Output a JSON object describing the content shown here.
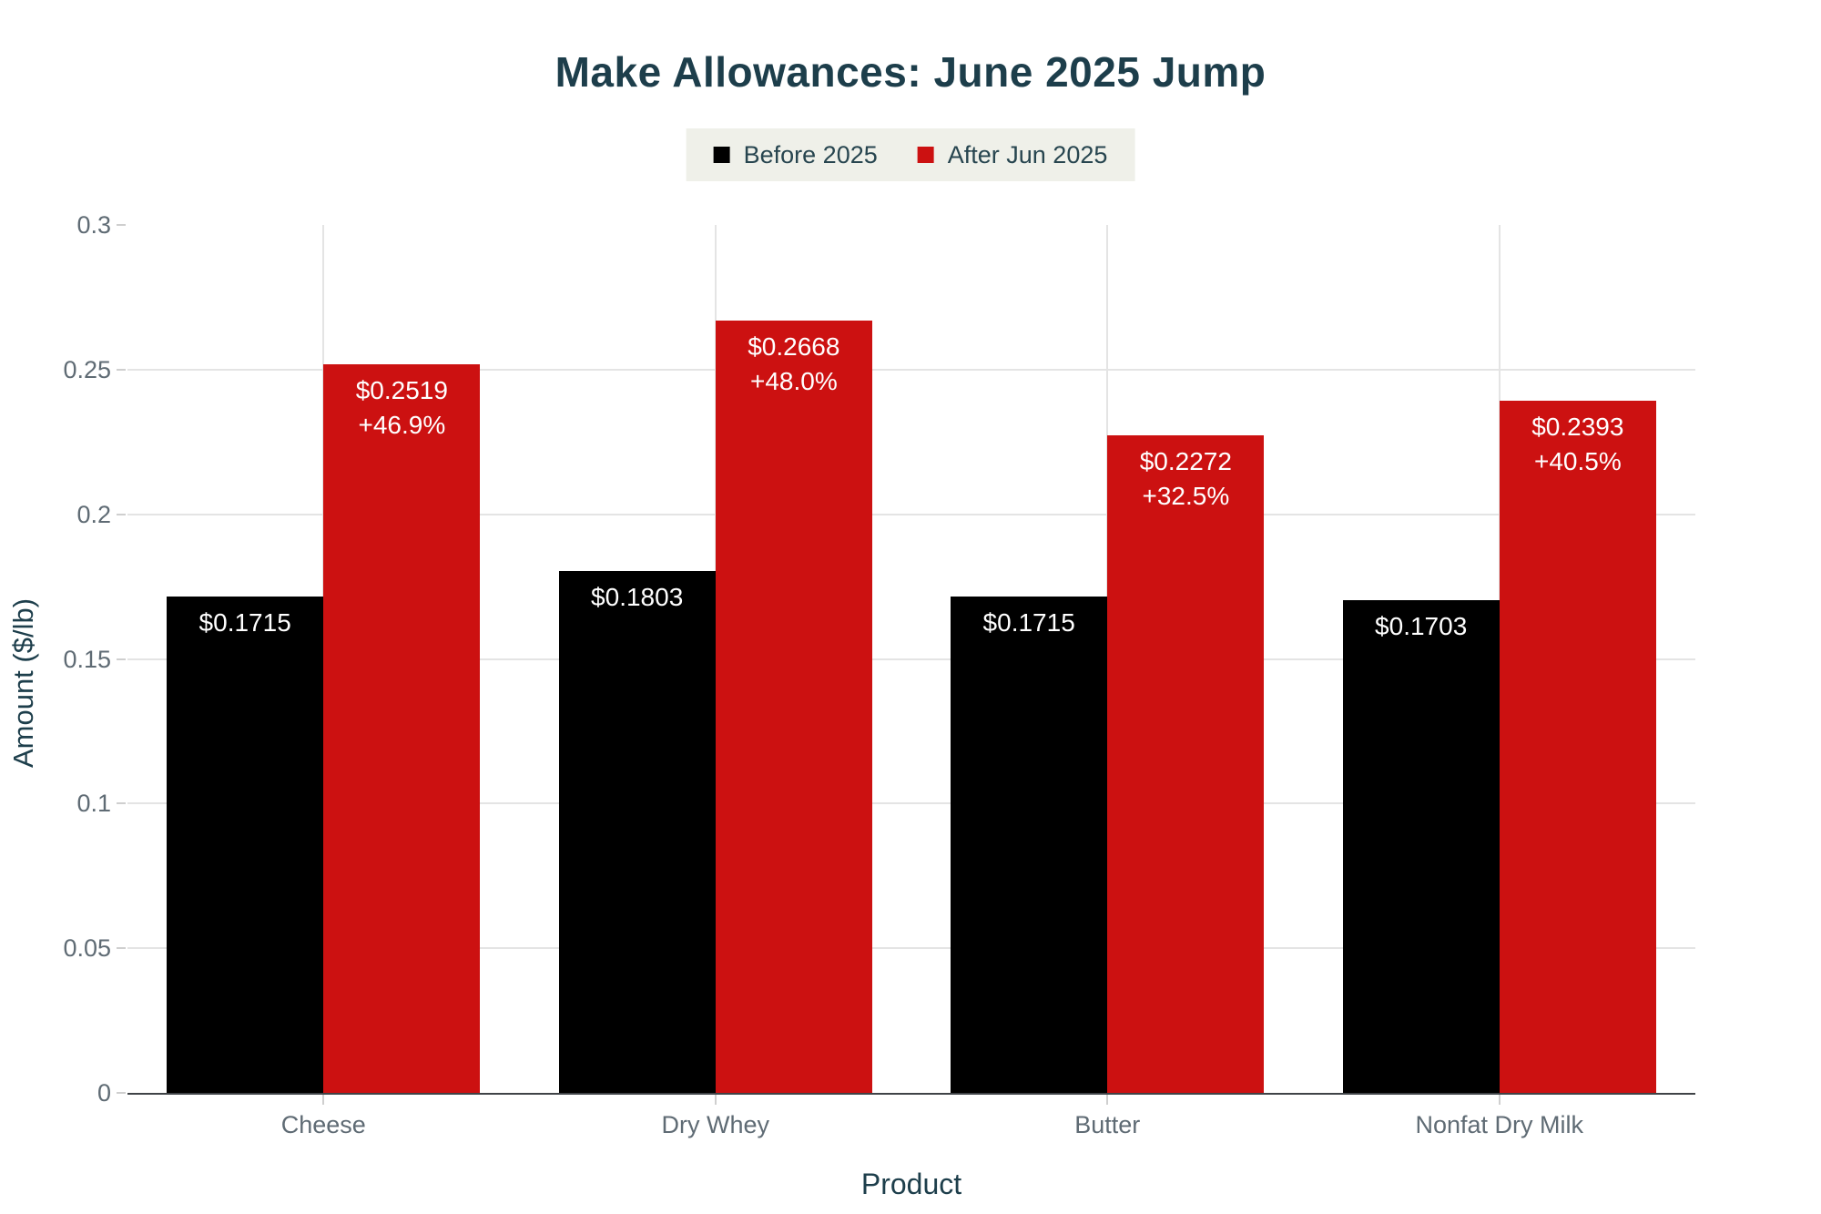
{
  "chart_data": {
    "type": "bar",
    "title": "Make Allowances: June 2025 Jump",
    "xlabel": "Product",
    "ylabel": "Amount ($/lb)",
    "ylim": [
      0,
      0.3
    ],
    "yticks": [
      0,
      0.05,
      0.1,
      0.15,
      0.2,
      0.25,
      0.3
    ],
    "ytick_labels": [
      "0",
      "0.05",
      "0.1",
      "0.15",
      "0.2",
      "0.25",
      "0.3"
    ],
    "categories": [
      "Cheese",
      "Dry Whey",
      "Butter",
      "Nonfat Dry Milk"
    ],
    "series": [
      {
        "name": "Before 2025",
        "color": "#000000",
        "label_color": "#ffffff",
        "values": [
          0.1715,
          0.1803,
          0.1715,
          0.1703
        ],
        "bar_labels": [
          "$0.1715",
          "$0.1803",
          "$0.1715",
          "$0.1703"
        ]
      },
      {
        "name": "After Jun 2025",
        "color": "#cc1111",
        "label_color": "#ffffff",
        "values": [
          0.2519,
          0.2668,
          0.2272,
          0.2393
        ],
        "bar_labels": [
          "$0.2519",
          "$0.2668",
          "$0.2272",
          "$0.2393"
        ],
        "pct_labels": [
          "+46.9%",
          "+48.0%",
          "+32.5%",
          "+40.5%"
        ]
      }
    ],
    "legend_position": "top-center",
    "grid": {
      "horizontal": true,
      "vertical_at_category_centers": true,
      "gridline_at_ymax": false
    }
  },
  "colors": {
    "title": "#1d3e4b",
    "axis_title": "#1d3e4b",
    "tick_label": "#5f6b74",
    "legend_bg": "#eff0e9",
    "legend_text": "#27454f",
    "gridline": "#e4e4e4",
    "axis_line": "#3f4347",
    "background": "#ffffff"
  }
}
